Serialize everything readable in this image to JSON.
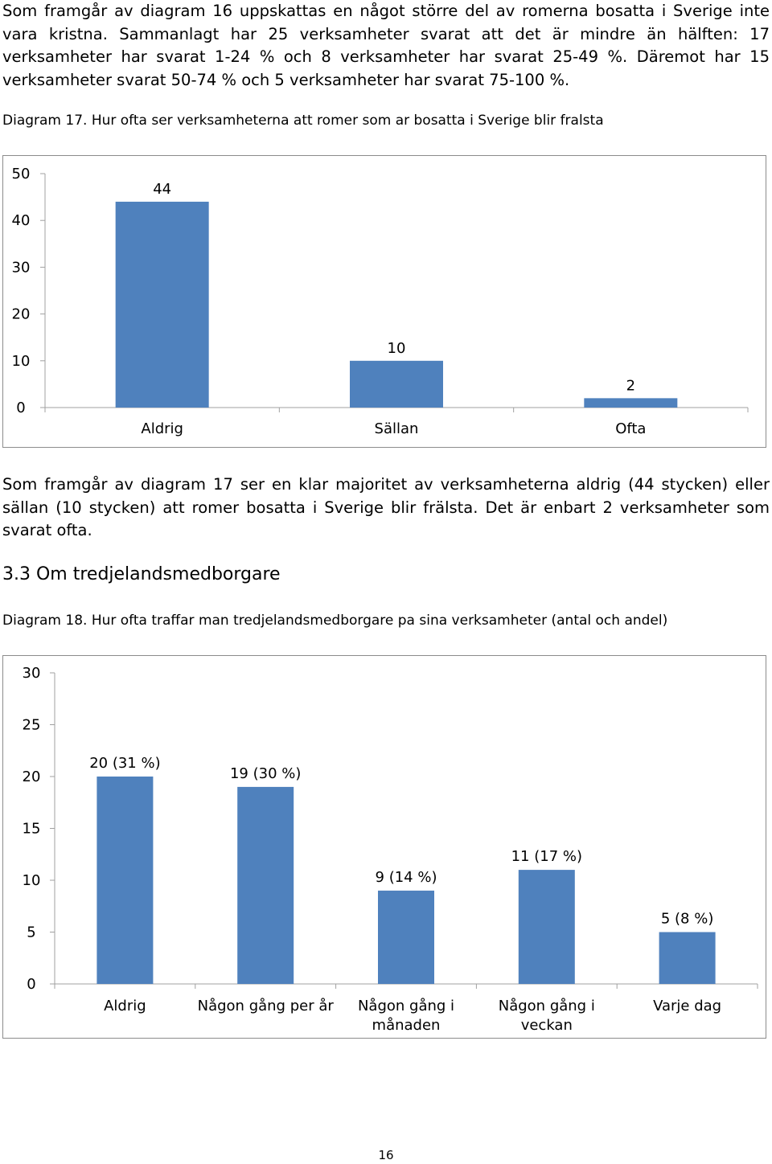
{
  "text": {
    "para1": "Som framgår av diagram 16 uppskattas en något större del av romerna bosatta i Sverige inte vara kristna. Sammanlagt har 25 verksamheter svarat att det är mindre än hälften: 17 verksamheter har svarat 1-24 % och 8 verksamheter har svarat 25-49 %. Däremot har 15 verksamheter svarat 50-74 % och 5 verksamheter har svarat 75-100 %.",
    "caption17": "Diagram 17. Hur ofta ser verksamheterna att romer som ar bosatta i Sverige blir fralsta",
    "para2": "Som framgår av diagram 17 ser en klar majoritet av verksamheterna aldrig (44 stycken) eller sällan (10 stycken) att romer bosatta i Sverige blir frälsta. Det är enbart 2 verksamheter som svarat ofta.",
    "heading": "3.3 Om tredjelandsmedborgare",
    "caption18": "Diagram 18. Hur ofta traffar man tredjelandsmedborgare pa sina verksamheter (antal och andel)",
    "page_number": "16"
  },
  "colors": {
    "bar": "#4f81bd",
    "axis": "#a0a0a0",
    "border": "#8c8c8c"
  },
  "chart_data": [
    {
      "type": "bar",
      "title": "",
      "categories": [
        "Aldrig",
        "Sällan",
        "Ofta"
      ],
      "values": [
        44,
        10,
        2
      ],
      "data_labels": [
        "44",
        "10",
        "2"
      ],
      "yticks": [
        "0",
        "10",
        "20",
        "30",
        "40",
        "50"
      ],
      "ylim": [
        0,
        50
      ],
      "grid": false,
      "legend": "none"
    },
    {
      "type": "bar",
      "title": "",
      "categories": [
        "Aldrig",
        "Någon gång per år",
        "Någon gång i månaden",
        "Någon gång i veckan",
        "Varje dag"
      ],
      "category_lines": [
        [
          "Aldrig"
        ],
        [
          "Någon gång per år"
        ],
        [
          "Någon gång i",
          "månaden"
        ],
        [
          "Någon gång i",
          "veckan"
        ],
        [
          "Varje dag"
        ]
      ],
      "values": [
        20,
        19,
        9,
        11,
        5
      ],
      "data_labels": [
        "20 (31 %)",
        "19 (30 %)",
        "9 (14 %)",
        "11 (17 %)",
        "5 (8 %)"
      ],
      "yticks": [
        "0",
        "5",
        "10",
        "15",
        "20",
        "25",
        "30"
      ],
      "ylim": [
        0,
        30
      ],
      "grid": false,
      "legend": "none"
    }
  ]
}
